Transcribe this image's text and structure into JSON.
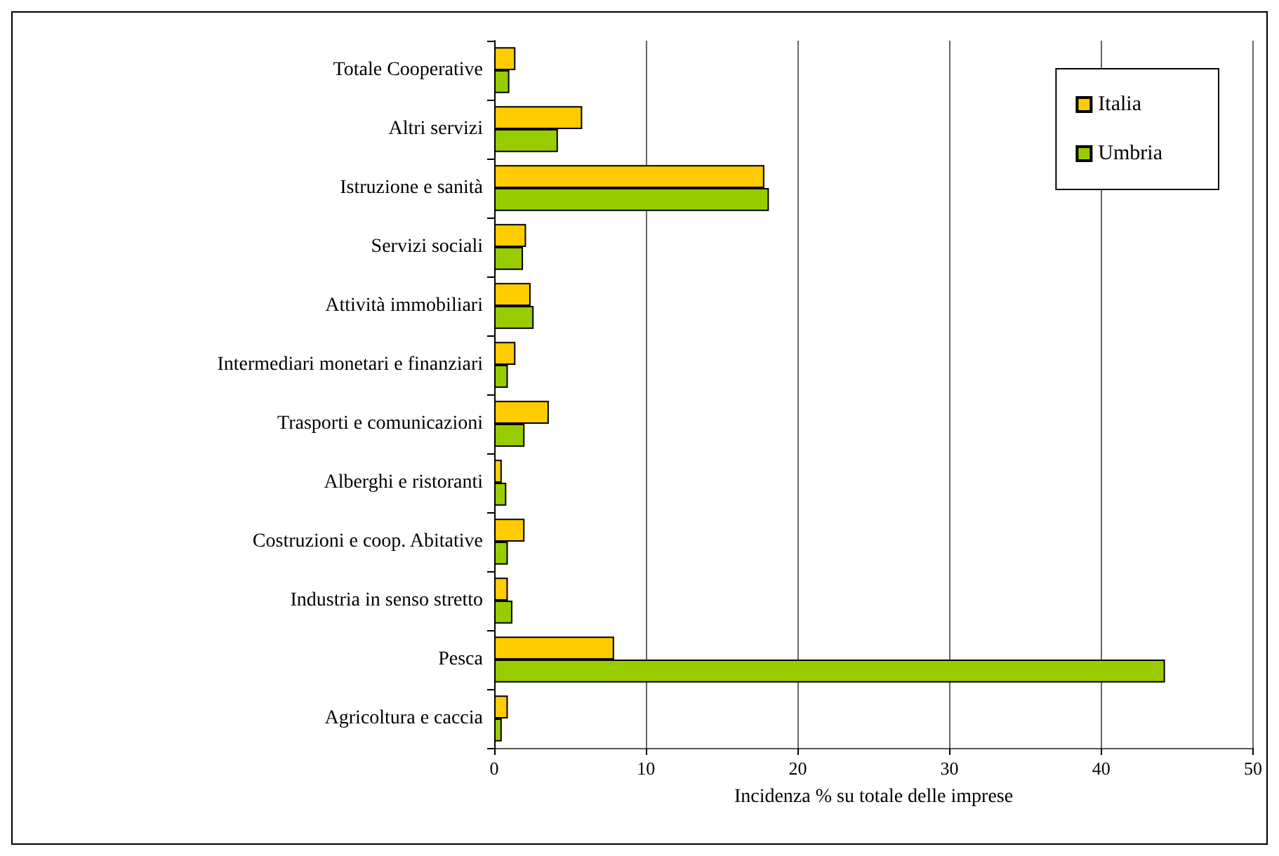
{
  "chart_data": {
    "type": "bar",
    "orientation": "horizontal",
    "xlabel": "Incidenza % su totale delle imprese",
    "categories": [
      "Totale Cooperative",
      "Altri servizi",
      "Istruzione e sanità",
      "Servizi sociali",
      "Attività immobiliari",
      "Intermediari monetari e finanziari",
      "Trasporti e comunicazioni",
      "Alberghi e ristoranti",
      "Costruzioni e coop. Abitative",
      "Industria in senso stretto",
      "Pesca",
      "Agricoltura e caccia"
    ],
    "series": [
      {
        "name": "Italia",
        "color": "#ffcc00",
        "values": [
          1.4,
          5.8,
          17.8,
          2.1,
          2.4,
          1.4,
          3.6,
          0.5,
          2.0,
          0.9,
          7.9,
          0.9
        ]
      },
      {
        "name": "Umbria",
        "color": "#99cc00",
        "values": [
          1.0,
          4.2,
          18.1,
          1.9,
          2.6,
          0.9,
          2.0,
          0.8,
          0.9,
          1.2,
          44.2,
          0.5
        ]
      }
    ],
    "xlim": [
      0,
      50
    ],
    "xticks": [
      0,
      10,
      20,
      30,
      40,
      50
    ],
    "grid": "x",
    "legend": "top right"
  }
}
